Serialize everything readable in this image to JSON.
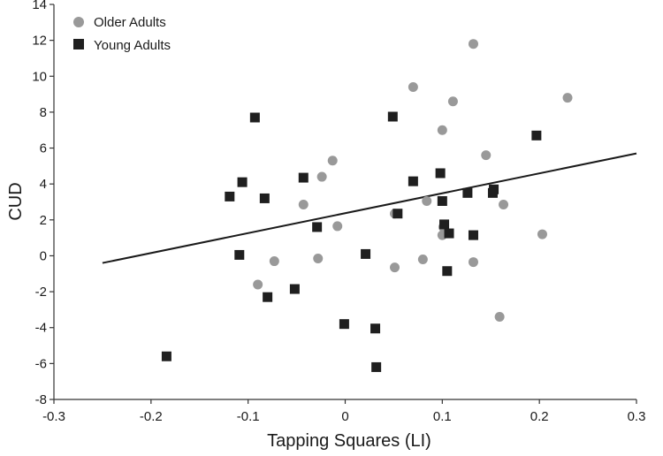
{
  "chart_data": {
    "type": "scatter",
    "xlabel": "Tapping Squares (LI)",
    "ylabel": "CUD",
    "xlim": [
      -0.3,
      0.3
    ],
    "ylim": [
      -8,
      14
    ],
    "xticks": [
      "-0.3",
      "-0.2",
      "-0.1",
      "0",
      "0.1",
      "0.2",
      "0.3"
    ],
    "xtick_values": [
      -0.3,
      -0.2,
      -0.1,
      0,
      0.1,
      0.2,
      0.3
    ],
    "yticks": [
      "-8",
      "-6",
      "-4",
      "-2",
      "0",
      "2",
      "4",
      "6",
      "8",
      "10",
      "12",
      "14"
    ],
    "ytick_values": [
      -8,
      -6,
      -4,
      -2,
      0,
      2,
      4,
      6,
      8,
      10,
      12,
      14
    ],
    "grid": false,
    "legend_position": "top-left",
    "series": [
      {
        "name": "Older Adults",
        "marker": "circle",
        "color": "#999999",
        "points": [
          [
            0.132,
            11.8
          ],
          [
            0.07,
            9.4
          ],
          [
            0.229,
            8.8
          ],
          [
            0.111,
            8.6
          ],
          [
            0.1,
            7.0
          ],
          [
            0.145,
            5.6
          ],
          [
            -0.013,
            5.3
          ],
          [
            -0.024,
            4.4
          ],
          [
            -0.043,
            2.85
          ],
          [
            0.163,
            2.85
          ],
          [
            0.084,
            3.05
          ],
          [
            0.051,
            2.35
          ],
          [
            -0.008,
            1.65
          ],
          [
            0.101,
            1.6
          ],
          [
            0.1,
            1.15
          ],
          [
            0.203,
            1.2
          ],
          [
            -0.028,
            -0.15
          ],
          [
            -0.073,
            -0.3
          ],
          [
            0.08,
            -0.2
          ],
          [
            0.132,
            -0.35
          ],
          [
            0.051,
            -0.65
          ],
          [
            -0.09,
            -1.6
          ],
          [
            0.159,
            -3.4
          ]
        ]
      },
      {
        "name": "Young Adults",
        "marker": "square",
        "color": "#1f1f1f",
        "points": [
          [
            -0.093,
            7.7
          ],
          [
            0.049,
            7.75
          ],
          [
            0.197,
            6.7
          ],
          [
            -0.043,
            4.35
          ],
          [
            0.098,
            4.6
          ],
          [
            -0.106,
            4.1
          ],
          [
            0.07,
            4.15
          ],
          [
            0.153,
            3.7
          ],
          [
            -0.119,
            3.3
          ],
          [
            -0.083,
            3.2
          ],
          [
            0.126,
            3.5
          ],
          [
            0.152,
            3.5
          ],
          [
            0.1,
            3.05
          ],
          [
            0.054,
            2.35
          ],
          [
            -0.029,
            1.6
          ],
          [
            0.102,
            1.75
          ],
          [
            0.107,
            1.25
          ],
          [
            0.132,
            1.15
          ],
          [
            -0.109,
            0.05
          ],
          [
            0.021,
            0.1
          ],
          [
            0.105,
            -0.85
          ],
          [
            -0.052,
            -1.85
          ],
          [
            -0.08,
            -2.3
          ],
          [
            -0.001,
            -3.8
          ],
          [
            0.031,
            -4.05
          ],
          [
            -0.184,
            -5.6
          ],
          [
            0.032,
            -6.2
          ]
        ]
      }
    ],
    "trendline": {
      "x": [
        -0.25,
        0.3
      ],
      "y": [
        -0.4,
        5.7
      ]
    }
  }
}
